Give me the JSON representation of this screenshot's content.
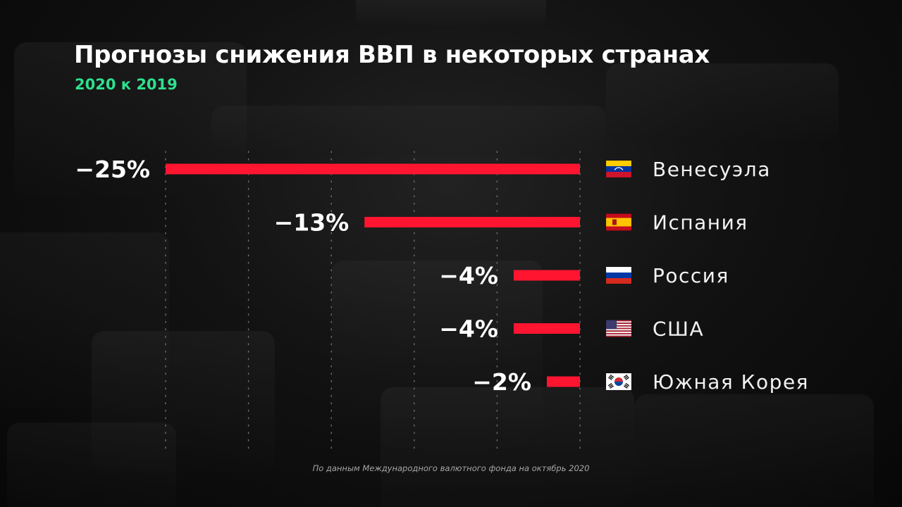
{
  "title": "Прогнозы снижения ВВП в некоторых странах",
  "subtitle": "2020 к 2019",
  "source": "По данным Международного валютного фонда на октябрь 2020",
  "colors": {
    "bar": "#ff1530",
    "subtitle": "#2ee08e",
    "gridline": "#6b6b6b",
    "text": "#ffffff"
  },
  "chart_data": {
    "type": "bar",
    "orientation": "horizontal",
    "categories": [
      "Венесуэла",
      "Испания",
      "Россия",
      "США",
      "Южная Корея"
    ],
    "values": [
      -25,
      -13,
      -4,
      -4,
      -2
    ],
    "value_labels": [
      "−25%",
      "−13%",
      "−4%",
      "−4%",
      "−2%"
    ],
    "flags": [
      "venezuela-flag",
      "spain-flag",
      "russia-flag",
      "usa-flag",
      "south-korea-flag"
    ],
    "xlim": [
      -25,
      0
    ],
    "grid": true
  }
}
